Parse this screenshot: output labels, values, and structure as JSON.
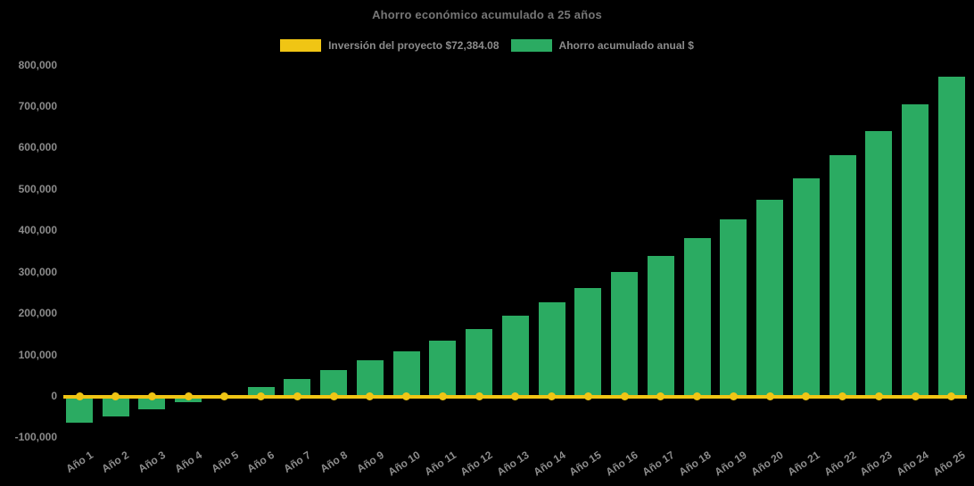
{
  "title": "Ahorro económico acumulado a 25 años",
  "colors": {
    "background": "#000000",
    "investment_yellow": "#F0C514",
    "savings_green": "#2BAB62",
    "title_text": "#767676",
    "tick_text": "#8b8b8b"
  },
  "legend": {
    "items": [
      {
        "id": "investment",
        "label": "Inversión del proyecto $72,384.08",
        "color": "#F0C514"
      },
      {
        "id": "savings",
        "label": "Ahorro acumulado anual $",
        "color": "#2BAB62"
      }
    ]
  },
  "chart_data": {
    "type": "bar",
    "title": "Ahorro económico acumulado a 25 años",
    "categories": [
      "Año 1",
      "Año 2",
      "Año 3",
      "Año 4",
      "Año 5",
      "Año 6",
      "Año 7",
      "Año 8",
      "Año 9",
      "Año 10",
      "Año 11",
      "Año 12",
      "Año 13",
      "Año 14",
      "Año 15",
      "Año 16",
      "Año 17",
      "Año 18",
      "Año 19",
      "Año 20",
      "Año 21",
      "Año 22",
      "Año 23",
      "Año 24",
      "Año 25"
    ],
    "series": [
      {
        "name": "Inversión del proyecto $72,384.08",
        "type": "line",
        "color": "#F0C514",
        "marker": "circle",
        "values": [
          0,
          0,
          0,
          0,
          0,
          0,
          0,
          0,
          0,
          0,
          0,
          0,
          0,
          0,
          0,
          0,
          0,
          0,
          0,
          0,
          0,
          0,
          0,
          0,
          0
        ]
      },
      {
        "name": "Ahorro acumulado anual $",
        "type": "bar",
        "color": "#2BAB62",
        "values": [
          -63000,
          -49000,
          -31000,
          -13000,
          4000,
          23000,
          42000,
          63000,
          87000,
          108000,
          135000,
          163000,
          195000,
          227000,
          262000,
          300000,
          339000,
          383000,
          427000,
          474000,
          526000,
          583000,
          640000,
          705000,
          772000
        ]
      }
    ],
    "xlabel": "",
    "ylabel": "",
    "ylim": [
      -100000,
      800000
    ],
    "ytick_step": 100000,
    "yticks": [
      {
        "value": 800000,
        "label": "800,000"
      },
      {
        "value": 700000,
        "label": "700,000"
      },
      {
        "value": 600000,
        "label": "600,000"
      },
      {
        "value": 500000,
        "label": "500,000"
      },
      {
        "value": 400000,
        "label": "400,000"
      },
      {
        "value": 300000,
        "label": "300,000"
      },
      {
        "value": 200000,
        "label": "200,000"
      },
      {
        "value": 100000,
        "label": "100,000"
      },
      {
        "value": 0,
        "label": "0"
      },
      {
        "value": -100000,
        "label": "-100,000"
      }
    ],
    "grid": false,
    "legend_position": "top"
  }
}
